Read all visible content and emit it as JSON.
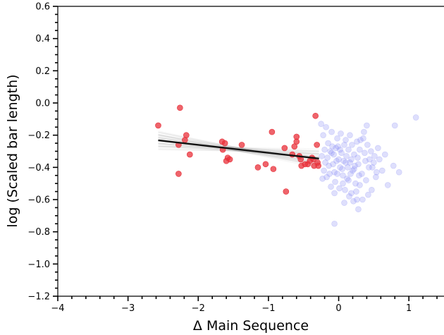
{
  "chart_data": {
    "type": "scatter",
    "title": "",
    "xlabel": "Δ Main Sequence",
    "ylabel": "log (Scaled bar length)",
    "xlim": [
      -4,
      1.5
    ],
    "ylim": [
      -1.2,
      0.6
    ],
    "x_ticks": [
      -4,
      -3,
      -2,
      -1,
      0,
      1
    ],
    "x_tick_labels": [
      "−4",
      "−3",
      "−2",
      "−1",
      "0",
      "1"
    ],
    "y_ticks": [
      0.6,
      0.4,
      0.2,
      0.0,
      -0.2,
      -0.4,
      -0.6,
      -0.8,
      -1.0,
      -1.2
    ],
    "y_tick_labels": [
      "0.6",
      "0.4",
      "0.2",
      "0.0",
      "−0.2",
      "−0.4",
      "−0.6",
      "−0.8",
      "−1.0",
      "−1.2"
    ],
    "grid": false,
    "colors": {
      "highlighted": "#e8303a",
      "other": "#8a8cf5",
      "fit_line": "#111111",
      "fit_samples": "#7a7a7a"
    },
    "fit_line": {
      "x": [
        -2.57,
        -0.28
      ],
      "y": [
        -0.232,
        -0.345
      ]
    },
    "series": [
      {
        "points": [
          [
            -2.57,
            -0.14
          ],
          [
            -2.26,
            -0.03
          ],
          [
            -2.28,
            -0.26
          ],
          [
            -2.28,
            -0.44
          ],
          [
            -2.17,
            -0.2
          ],
          [
            -2.19,
            -0.23
          ],
          [
            -2.12,
            -0.32
          ],
          [
            -1.66,
            -0.24
          ],
          [
            -1.62,
            -0.25
          ],
          [
            -1.65,
            -0.29
          ],
          [
            -1.58,
            -0.34
          ],
          [
            -1.6,
            -0.36
          ],
          [
            -1.55,
            -0.35
          ],
          [
            -1.38,
            -0.26
          ],
          [
            -1.15,
            -0.4
          ],
          [
            -1.04,
            -0.38
          ],
          [
            -0.95,
            -0.18
          ],
          [
            -0.93,
            -0.41
          ],
          [
            -0.77,
            -0.28
          ],
          [
            -0.75,
            -0.55
          ],
          [
            -0.66,
            -0.32
          ],
          [
            -0.63,
            -0.27
          ],
          [
            -0.6,
            -0.21
          ],
          [
            -0.6,
            -0.24
          ],
          [
            -0.56,
            -0.33
          ],
          [
            -0.54,
            -0.35
          ],
          [
            -0.53,
            -0.39
          ],
          [
            -0.48,
            -0.38
          ],
          [
            -0.44,
            -0.38
          ],
          [
            -0.41,
            -0.36
          ],
          [
            -0.38,
            -0.34
          ],
          [
            -0.36,
            -0.35
          ],
          [
            -0.35,
            -0.39
          ],
          [
            -0.33,
            -0.08
          ],
          [
            -0.31,
            -0.26
          ],
          [
            -0.3,
            -0.37
          ],
          [
            -0.29,
            -0.39
          ]
        ]
      },
      {
        "points": [
          [
            -0.25,
            -0.13
          ],
          [
            -0.22,
            -0.2
          ],
          [
            -0.18,
            -0.15
          ],
          [
            -0.15,
            -0.25
          ],
          [
            -0.12,
            -0.3
          ],
          [
            -0.1,
            -0.18
          ],
          [
            -0.08,
            -0.38
          ],
          [
            -0.06,
            -0.43
          ],
          [
            -0.04,
            -0.28
          ],
          [
            -0.02,
            -0.22
          ],
          [
            0.0,
            -0.35
          ],
          [
            0.02,
            -0.4
          ],
          [
            0.04,
            -0.31
          ],
          [
            0.06,
            -0.45
          ],
          [
            0.08,
            -0.26
          ],
          [
            0.1,
            -0.37
          ],
          [
            0.12,
            -0.47
          ],
          [
            0.14,
            -0.29
          ],
          [
            0.16,
            -0.2
          ],
          [
            0.18,
            -0.35
          ],
          [
            0.2,
            -0.42
          ],
          [
            0.22,
            -0.32
          ],
          [
            0.24,
            -0.5
          ],
          [
            0.26,
            -0.24
          ],
          [
            0.28,
            -0.38
          ],
          [
            0.3,
            -0.29
          ],
          [
            0.33,
            -0.44
          ],
          [
            0.36,
            -0.18
          ],
          [
            0.38,
            -0.36
          ],
          [
            0.4,
            -0.14
          ],
          [
            0.43,
            -0.4
          ],
          [
            0.46,
            -0.3
          ],
          [
            0.5,
            -0.37
          ],
          [
            0.53,
            -0.46
          ],
          [
            0.56,
            -0.28
          ],
          [
            0.62,
            -0.42
          ],
          [
            0.7,
            -0.51
          ],
          [
            0.78,
            -0.39
          ],
          [
            0.86,
            -0.43
          ],
          [
            1.1,
            -0.09
          ],
          [
            -0.24,
            -0.33
          ],
          [
            -0.21,
            -0.42
          ],
          [
            -0.19,
            -0.37
          ],
          [
            -0.17,
            -0.46
          ],
          [
            -0.14,
            -0.39
          ],
          [
            -0.11,
            -0.52
          ],
          [
            -0.09,
            -0.27
          ],
          [
            -0.07,
            -0.32
          ],
          [
            -0.05,
            -0.49
          ],
          [
            -0.03,
            -0.36
          ],
          [
            -0.01,
            -0.27
          ],
          [
            0.01,
            -0.53
          ],
          [
            0.03,
            -0.19
          ],
          [
            0.05,
            -0.41
          ],
          [
            0.07,
            -0.36
          ],
          [
            0.09,
            -0.54
          ],
          [
            0.11,
            -0.33
          ],
          [
            0.13,
            -0.4
          ],
          [
            0.15,
            -0.58
          ],
          [
            0.17,
            -0.44
          ],
          [
            0.19,
            -0.26
          ],
          [
            0.21,
            -0.61
          ],
          [
            0.23,
            -0.39
          ],
          [
            0.25,
            -0.55
          ],
          [
            0.27,
            -0.34
          ],
          [
            0.29,
            -0.45
          ],
          [
            0.31,
            -0.23
          ],
          [
            0.34,
            -0.6
          ],
          [
            0.37,
            -0.31
          ],
          [
            0.39,
            -0.48
          ],
          [
            0.41,
            -0.26
          ],
          [
            0.44,
            -0.35
          ],
          [
            0.47,
            -0.54
          ],
          [
            0.51,
            -0.33
          ],
          [
            0.54,
            -0.43
          ],
          [
            -0.2,
            -0.29
          ],
          [
            -0.16,
            -0.34
          ],
          [
            -0.13,
            -0.44
          ],
          [
            -0.1,
            -0.31
          ],
          [
            -0.06,
            -0.56
          ],
          [
            -0.02,
            -0.44
          ],
          [
            0.02,
            -0.29
          ],
          [
            0.06,
            -0.5
          ],
          [
            0.1,
            -0.23
          ],
          [
            0.14,
            -0.48
          ],
          [
            0.18,
            -0.56
          ],
          [
            0.22,
            -0.41
          ],
          [
            0.26,
            -0.6
          ],
          [
            0.3,
            -0.51
          ],
          [
            0.35,
            -0.22
          ],
          [
            0.42,
            -0.57
          ],
          [
            0.48,
            -0.4
          ],
          [
            0.58,
            -0.35
          ],
          [
            -0.06,
            -0.75
          ],
          [
            0.28,
            -0.66
          ],
          [
            0.8,
            -0.14
          ],
          [
            0.66,
            -0.32
          ],
          [
            0.08,
            -0.62
          ],
          [
            -0.23,
            -0.47
          ],
          [
            0.16,
            -0.37
          ]
        ]
      }
    ]
  }
}
